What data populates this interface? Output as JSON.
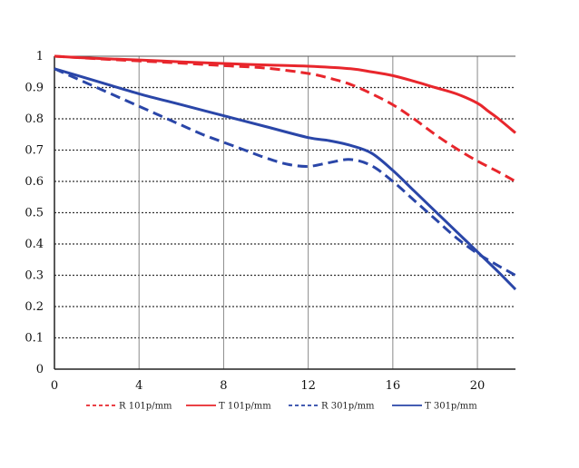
{
  "chart_data": {
    "type": "line",
    "title": "",
    "xlabel": "",
    "ylabel": "",
    "xlim": [
      0,
      21.8
    ],
    "ylim": [
      0,
      1
    ],
    "x_ticks": [
      "0",
      "4",
      "8",
      "12",
      "16",
      "20"
    ],
    "y_ticks": [
      "0",
      "0.1",
      "0.2",
      "0.3",
      "0.4",
      "0.5",
      "0.6",
      "0.7",
      "0.8",
      "0.9",
      "1"
    ],
    "grid": "horizontal dotted, vertical solid",
    "legend_position": "bottom",
    "series": [
      {
        "name": "R 101p/mm",
        "color": "#e8262c",
        "style": "dashed",
        "x": [
          0,
          2,
          4,
          6,
          8,
          10,
          12,
          13,
          14,
          15,
          16,
          17,
          18,
          19,
          20,
          21,
          21.8
        ],
        "y": [
          1.0,
          0.992,
          0.985,
          0.978,
          0.97,
          0.962,
          0.945,
          0.93,
          0.91,
          0.88,
          0.845,
          0.8,
          0.75,
          0.705,
          0.665,
          0.63,
          0.6
        ]
      },
      {
        "name": "T 101p/mm",
        "color": "#e8262c",
        "style": "solid",
        "x": [
          0,
          2,
          4,
          6,
          8,
          10,
          12,
          14,
          15,
          16,
          17,
          18,
          19,
          20,
          20.5,
          21,
          21.8
        ],
        "y": [
          1.0,
          0.993,
          0.988,
          0.982,
          0.977,
          0.972,
          0.968,
          0.96,
          0.95,
          0.938,
          0.92,
          0.9,
          0.88,
          0.85,
          0.825,
          0.8,
          0.755
        ]
      },
      {
        "name": "R 301p/mm",
        "color": "#2a46a8",
        "style": "dashed",
        "x": [
          0,
          1,
          2,
          3,
          4,
          5,
          6,
          7,
          8,
          9,
          10,
          11,
          12,
          13,
          14,
          15,
          16,
          17,
          18,
          19,
          20,
          21,
          21.8
        ],
        "y": [
          0.96,
          0.93,
          0.9,
          0.87,
          0.84,
          0.81,
          0.78,
          0.75,
          0.725,
          0.7,
          0.675,
          0.655,
          0.648,
          0.66,
          0.67,
          0.65,
          0.6,
          0.54,
          0.48,
          0.42,
          0.37,
          0.33,
          0.3
        ]
      },
      {
        "name": "T 301p/mm",
        "color": "#2a46a8",
        "style": "solid",
        "x": [
          0,
          2,
          4,
          6,
          8,
          10,
          12,
          13,
          14,
          15,
          16,
          17,
          18,
          19,
          20,
          21,
          21.8
        ],
        "y": [
          0.96,
          0.92,
          0.88,
          0.845,
          0.81,
          0.775,
          0.74,
          0.73,
          0.715,
          0.69,
          0.635,
          0.57,
          0.505,
          0.44,
          0.375,
          0.31,
          0.255
        ]
      }
    ]
  }
}
